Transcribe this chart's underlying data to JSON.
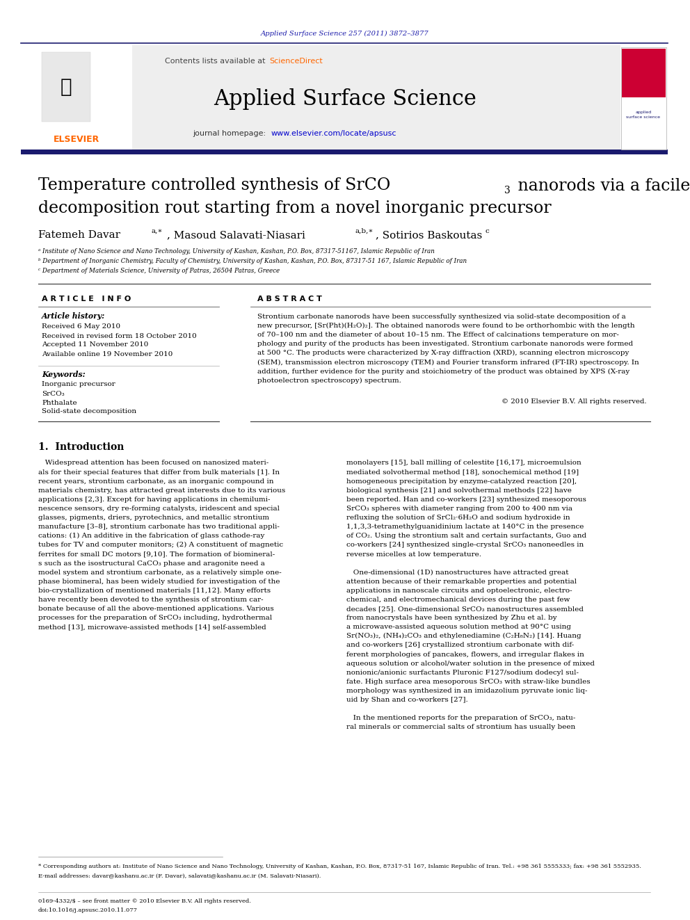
{
  "page_width": 9.92,
  "page_height": 13.23,
  "bg_color": "#ffffff",
  "header_journal_text": "Applied Surface Science 257 (2011) 3872–3877",
  "header_journal_color": "#1a1aaa",
  "contents_text": "Contents lists available at ",
  "sciencedirect_text": "ScienceDirect",
  "sciencedirect_color": "#ff6600",
  "journal_name": "Applied Surface Science",
  "article_info_header": "A R T I C L E   I N F O",
  "abstract_header": "A B S T R A C T",
  "article_history_label": "Article history:",
  "received1": "Received 6 May 2010",
  "received2": "Received in revised form 18 October 2010",
  "accepted": "Accepted 11 November 2010",
  "available": "Available online 19 November 2010",
  "keywords_label": "Keywords:",
  "kw1": "Inorganic precursor",
  "kw2": "SrCO₃",
  "kw3": "Phthalate",
  "kw4": "Solid-state decomposition",
  "copyright": "© 2010 Elsevier B.V. All rights reserved.",
  "section1_title": "1.  Introduction",
  "affil_a": "ᵃ Institute of Nano Science and Nano Technology, University of Kashan, Kashan, P.O. Box, 87317-51167, Islamic Republic of Iran",
  "affil_b": "ᵇ Department of Inorganic Chemistry, Faculty of Chemistry, University of Kashan, Kashan, P.O. Box, 87317-51 167, Islamic Republic of Iran",
  "affil_c": "ᶜ Department of Materials Science, University of Patras, 26504 Patras, Greece",
  "footnote_star": "* Corresponding authors at: Institute of Nano Science and Nano Technology, University of Kashan, Kashan, P.O. Box, 87317-51 167, Islamic Republic of Iran. Tel.: +98 361 5555333; fax: +98 361 5552935.",
  "footnote_email": "E-mail addresses: davar@kashanu.ac.ir (F. Davar), salavati@kashanu.ac.ir (M. Salavati-Niasari).",
  "footer_issn": "0169-4332/$ – see front matter © 2010 Elsevier B.V. All rights reserved.",
  "footer_doi": "doi:10.1016/j.apsusc.2010.11.077",
  "abstract_lines": [
    "Strontium carbonate nanorods have been successfully synthesized via solid-state decomposition of a",
    "new precursor, [Sr(Pht)(H₂O)₂]. The obtained nanorods were found to be orthorhombic with the length",
    "of 70–100 nm and the diameter of about 10–15 nm. The Effect of calcinations temperature on mor-",
    "phology and purity of the products has been investigated. Strontium carbonate nanorods were formed",
    "at 500 °C. The products were characterized by X-ray diffraction (XRD), scanning electron microscopy",
    "(SEM), transmission electron microscopy (TEM) and Fourier transform infrared (FT-IR) spectroscopy. In",
    "addition, further evidence for the purity and stoichiometry of the product was obtained by XPS (X-ray",
    "photoelectron spectroscopy) spectrum."
  ],
  "left_col_lines": [
    "   Widespread attention has been focused on nanosized materi-",
    "als for their special features that differ from bulk materials [1]. In",
    "recent years, strontium carbonate, as an inorganic compound in",
    "materials chemistry, has attracted great interests due to its various",
    "applications [2,3]. Except for having applications in chemilumi-",
    "nescence sensors, dry re-forming catalysts, iridescent and special",
    "glasses, pigments, driers, pyrotechnics, and metallic strontium",
    "manufacture [3–8], strontium carbonate has two traditional appli-",
    "cations: (1) An additive in the fabrication of glass cathode-ray",
    "tubes for TV and computer monitors; (2) A constituent of magnetic",
    "ferrites for small DC motors [9,10]. The formation of biomineral-",
    "s such as the isostructural CaCO₃ phase and aragonite need a",
    "model system and strontium carbonate, as a relatively simple one-",
    "phase biomineral, has been widely studied for investigation of the",
    "bio-crystallization of mentioned materials [11,12]. Many efforts",
    "have recently been devoted to the synthesis of strontium car-",
    "bonate because of all the above-mentioned applications. Various",
    "processes for the preparation of SrCO₃ including, hydrothermal",
    "method [13], microwave-assisted methods [14] self-assembled"
  ],
  "right_col_lines": [
    "monolayers [15], ball milling of celestite [16,17], microemulsion",
    "mediated solvothermal method [18], sonochemical method [19]",
    "homogeneous precipitation by enzyme-catalyzed reaction [20],",
    "biological synthesis [21] and solvothermal methods [22] have",
    "been reported. Han and co-workers [23] synthesized mesoporous",
    "SrCO₃ spheres with diameter ranging from 200 to 400 nm via",
    "refluxing the solution of SrCl₂·6H₂O and sodium hydroxide in",
    "1,1,3,3-tetramethylguanidinium lactate at 140°C in the presence",
    "of CO₂. Using the strontium salt and certain surfactants, Guo and",
    "co-workers [24] synthesized single-crystal SrCO₃ nanoneedles in",
    "reverse micelles at low temperature.",
    "",
    "   One-dimensional (1D) nanostructures have attracted great",
    "attention because of their remarkable properties and potential",
    "applications in nanoscale circuits and optoelectronic, electro-",
    "chemical, and electromechanical devices during the past few",
    "decades [25]. One-dimensional SrCO₃ nanostructures assembled",
    "from nanocrystals have been synthesized by Zhu et al. by",
    "a microwave-assisted aqueous solution method at 90°C using",
    "Sr(NO₃)₂, (NH₄)₂CO₃ and ethylenediamine (C₂H₈N₂) [14]. Huang",
    "and co-workers [26] crystallized strontium carbonate with dif-",
    "ferent morphologies of pancakes, flowers, and irregular flakes in",
    "aqueous solution or alcohol/water solution in the presence of mixed",
    "nonionic/anionic surfactants Pluronic F127/sodium dodecyl sul-",
    "fate. High surface area mesoporous SrCO₃ with straw-like bundles",
    "morphology was synthesized in an imidazolium pyruvate ionic liq-",
    "uid by Shan and co-workers [27].",
    "",
    "   In the mentioned reports for the preparation of SrCO₃, natu-",
    "ral minerals or commercial salts of strontium has usually been"
  ]
}
